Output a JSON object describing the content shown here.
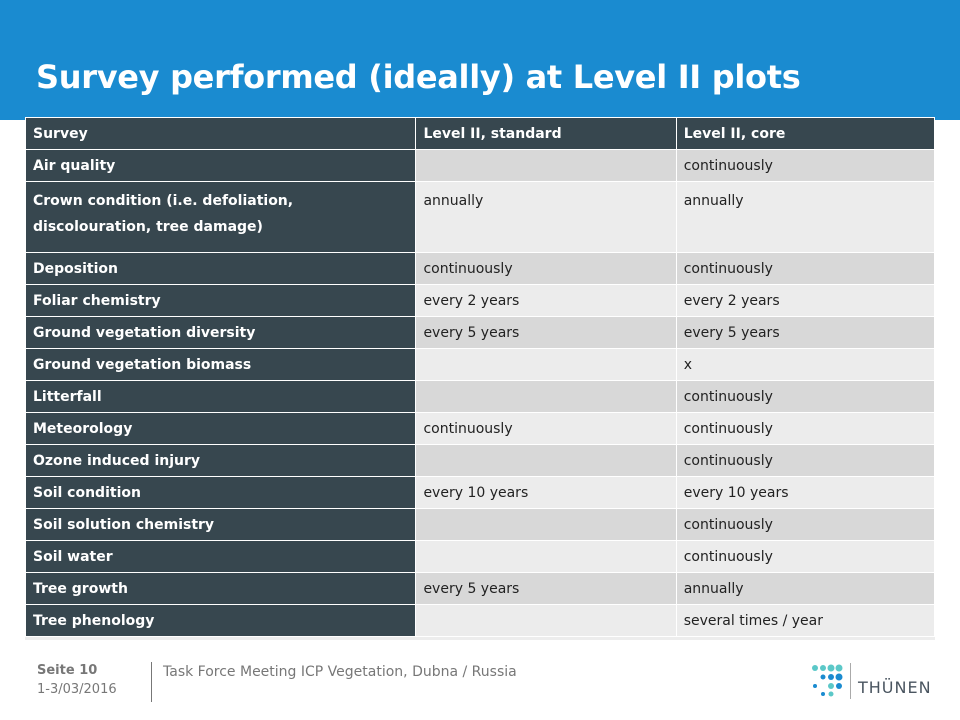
{
  "slide": {
    "title": "Survey performed (ideally) at Level II plots"
  },
  "table": {
    "headers": [
      "Survey",
      "Level II, standard",
      "Level II, core"
    ],
    "rows": [
      {
        "survey": "Air quality",
        "standard": "",
        "core": "continuously"
      },
      {
        "survey": "Crown condition  (i.e. defoliation, discolouration,  tree damage)",
        "standard": "annually",
        "core": "annually"
      },
      {
        "survey": "Deposition",
        "standard": "continuously",
        "core": "continuously"
      },
      {
        "survey": "Foliar chemistry",
        "standard": "every 2 years",
        "core": "every 2 years"
      },
      {
        "survey": "Ground vegetation diversity",
        "standard": "every 5 years",
        "core": "every 5 years"
      },
      {
        "survey": "Ground vegetation biomass",
        "standard": "",
        "core": "x"
      },
      {
        "survey": "Litterfall",
        "standard": "",
        "core": "continuously"
      },
      {
        "survey": "Meteorology",
        "standard": "continuously",
        "core": "continuously"
      },
      {
        "survey": "Ozone induced injury",
        "standard": "",
        "core": "continuously"
      },
      {
        "survey": "Soil condition",
        "standard": "every 10 years",
        "core": "every 10 years"
      },
      {
        "survey": "Soil solution  chemistry",
        "standard": "",
        "core": "continuously"
      },
      {
        "survey": "Soil water",
        "standard": "",
        "core": "continuously"
      },
      {
        "survey": "Tree growth",
        "standard": "every 5 years",
        "core": "annually"
      },
      {
        "survey": "Tree phenology",
        "standard": "",
        "core": "several times / year"
      }
    ]
  },
  "footer": {
    "page_label": "Seite 10",
    "date": "1-3/03/2016",
    "event": "Task Force Meeting ICP Vegetation, Dubna / Russia"
  },
  "logo": {
    "text": "THÜNEN",
    "icon": "thuenen-dots-logo",
    "dot_color_light": "#5bc8c8",
    "dot_color_dark": "#1a8bd0"
  },
  "colors": {
    "header_band": "#1a8bd0",
    "label_cell": "#37474f",
    "row_odd": "#d8d8d8",
    "row_even": "#ececec"
  }
}
